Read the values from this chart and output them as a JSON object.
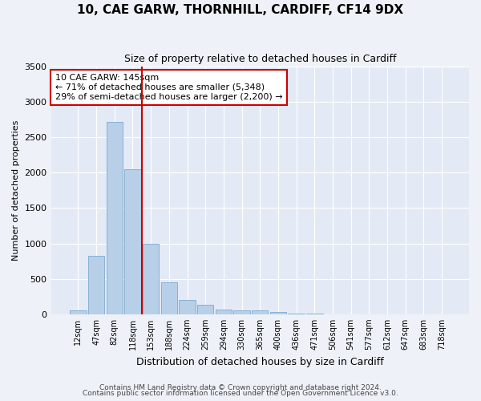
{
  "title1": "10, CAE GARW, THORNHILL, CARDIFF, CF14 9DX",
  "title2": "Size of property relative to detached houses in Cardiff",
  "xlabel": "Distribution of detached houses by size in Cardiff",
  "ylabel": "Number of detached properties",
  "annotation_line1": "10 CAE GARW: 145sqm",
  "annotation_line2": "← 71% of detached houses are smaller (5,348)",
  "annotation_line3": "29% of semi-detached houses are larger (2,200) →",
  "bar_color": "#b8cfe8",
  "bar_edge_color": "#6a9fc8",
  "vline_color": "#cc0000",
  "vline_x": 3.5,
  "categories": [
    "12sqm",
    "47sqm",
    "82sqm",
    "118sqm",
    "153sqm",
    "188sqm",
    "224sqm",
    "259sqm",
    "294sqm",
    "330sqm",
    "365sqm",
    "400sqm",
    "436sqm",
    "471sqm",
    "506sqm",
    "541sqm",
    "577sqm",
    "612sqm",
    "647sqm",
    "683sqm",
    "718sqm"
  ],
  "values": [
    60,
    830,
    2720,
    2050,
    1000,
    450,
    200,
    130,
    70,
    55,
    50,
    35,
    10,
    5,
    3,
    2,
    1,
    1,
    0,
    0,
    0
  ],
  "ylim": [
    0,
    3500
  ],
  "yticks": [
    0,
    500,
    1000,
    1500,
    2000,
    2500,
    3000,
    3500
  ],
  "footer1": "Contains HM Land Registry data © Crown copyright and database right 2024.",
  "footer2": "Contains public sector information licensed under the Open Government Licence v3.0.",
  "bg_color": "#eef2f8",
  "plot_bg_color": "#e4eaf5",
  "grid_color": "#ffffff",
  "title1_fontsize": 11,
  "title2_fontsize": 9,
  "xlabel_fontsize": 9,
  "ylabel_fontsize": 8
}
